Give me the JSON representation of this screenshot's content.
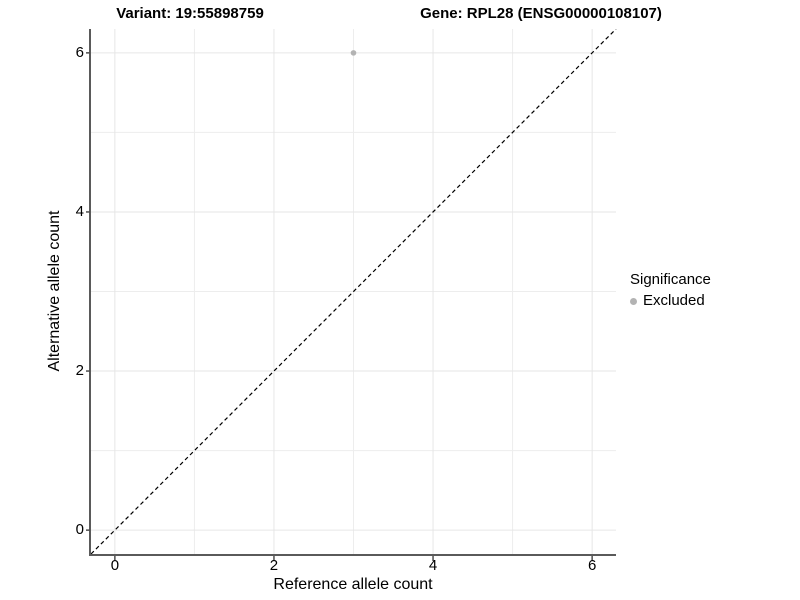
{
  "colors": {
    "background": "#ffffff",
    "grid_major": "#e6e6e6",
    "grid_minor": "#ededed",
    "axis_line": "#5a5a5a",
    "tick_mark": "#4d4d4d",
    "identity_line": "#000000",
    "point_excluded": "#b3b3b3",
    "text": "#000000"
  },
  "chart_data": {
    "type": "scatter",
    "title_left": "Variant: 19:55898759",
    "title_right": "Gene: RPL28 (ENSG00000108107)",
    "xlabel": "Reference allele count",
    "ylabel": "Alternative allele count",
    "xlim": [
      -0.3,
      6.3
    ],
    "ylim": [
      -0.3,
      6.3
    ],
    "x_ticks": [
      0,
      2,
      4,
      6
    ],
    "y_ticks": [
      0,
      2,
      4,
      6
    ],
    "x_minor_ticks": [
      1,
      3,
      5
    ],
    "y_minor_ticks": [
      1,
      3,
      5
    ],
    "grid": true,
    "points": [
      {
        "x": 3,
        "y": 6,
        "series": "Excluded",
        "color": "#b3b3b3",
        "radius": 2.8
      }
    ],
    "identity_line": {
      "from": [
        -0.3,
        -0.3
      ],
      "to": [
        6.3,
        6.3
      ],
      "style": "dashed",
      "color": "#000000"
    },
    "legend": {
      "position": "right",
      "title": "Significance",
      "items": [
        {
          "label": "Excluded",
          "color": "#b3b3b3"
        }
      ]
    }
  }
}
